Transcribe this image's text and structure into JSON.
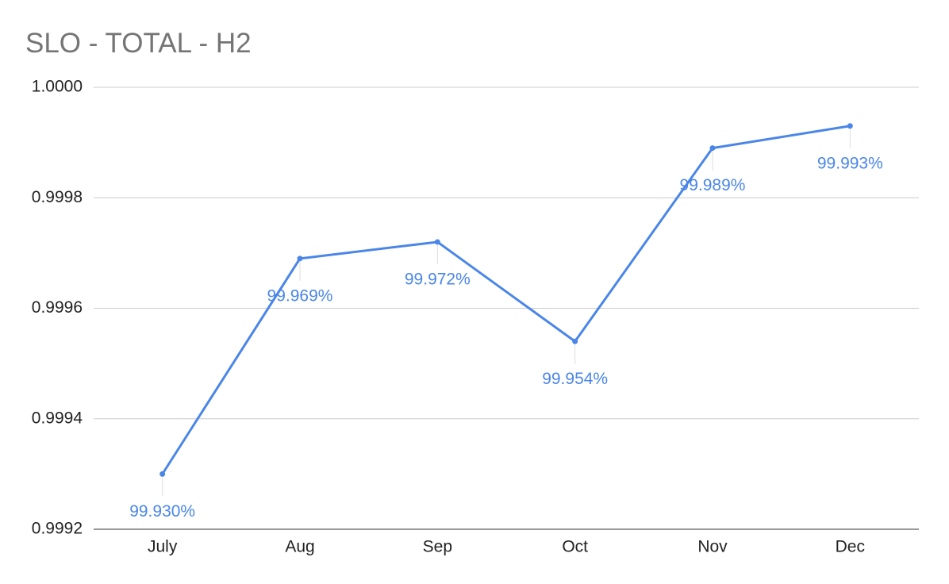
{
  "chart_data": {
    "type": "line",
    "title": "SLO - TOTAL - H2",
    "categories": [
      "July",
      "Aug",
      "Sep",
      "Oct",
      "Nov",
      "Dec"
    ],
    "values": [
      0.9993,
      0.99969,
      0.99972,
      0.99954,
      0.99989,
      0.99993
    ],
    "value_labels": [
      "99.930%",
      "99.969%",
      "99.972%",
      "99.954%",
      "99.989%",
      "99.993%"
    ],
    "color": "#4a86e8",
    "ylim": [
      0.9992,
      1
    ],
    "yticks": [
      0.9992,
      0.9994,
      0.9996,
      0.9998,
      {
        "value": 1,
        "label": "1.0000"
      }
    ],
    "grid": true
  }
}
